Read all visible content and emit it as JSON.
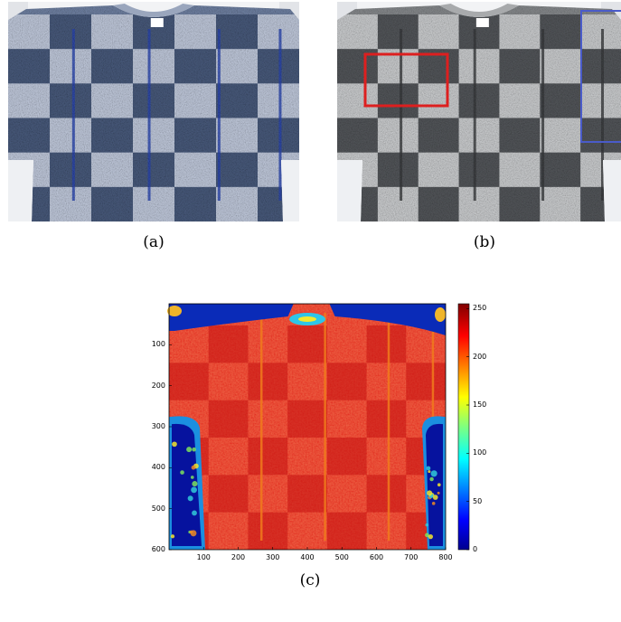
{
  "figure": {
    "captions": {
      "a": "(a)",
      "b": "(b)",
      "c": "(c)"
    },
    "panels": [
      {
        "id": "a",
        "content": "color photo of knitted sweater with checkered pattern"
      },
      {
        "id": "b",
        "content": "grayscale version with highlighted regions",
        "highlights": [
          {
            "label": "red-box",
            "color": "#dd1f1f"
          },
          {
            "label": "blue-box",
            "color": "#4a5bc9"
          }
        ]
      },
      {
        "id": "c",
        "content": "jet-colormap heatmap of sweater intensity"
      }
    ]
  },
  "chart_data": {
    "type": "heatmap",
    "title": "",
    "xlabel": "",
    "ylabel": "",
    "xlim": [
      0,
      800
    ],
    "ylim": [
      600,
      0
    ],
    "x_ticks": [
      "100",
      "200",
      "300",
      "400",
      "500",
      "600",
      "700",
      "800"
    ],
    "y_ticks": [
      "100",
      "200",
      "300",
      "400",
      "500",
      "600"
    ],
    "colorbar": {
      "range": [
        0,
        255
      ],
      "ticks": [
        "250",
        "200",
        "150",
        "100",
        "50",
        "0"
      ],
      "colormap": "jet"
    }
  }
}
